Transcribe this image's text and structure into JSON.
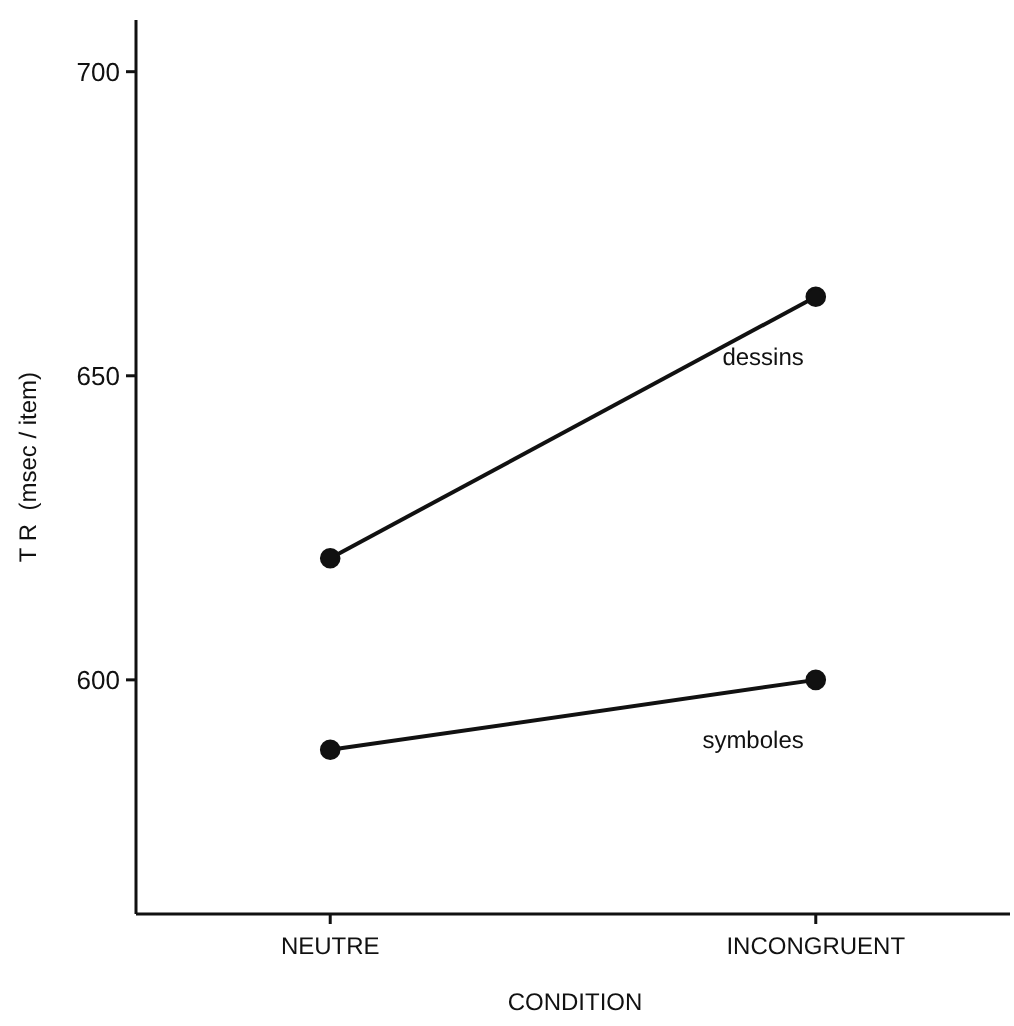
{
  "chart_data": {
    "type": "line",
    "xlabel": "CONDITION",
    "ylabel": "T R  (msec / item)",
    "categories": [
      "NEUTRE",
      "INCONGRUENT"
    ],
    "ylim": [
      561.5,
      708.5
    ],
    "yticks": [
      600,
      650,
      700
    ],
    "marker": "circle",
    "grid": false,
    "series": [
      {
        "name": "dessins",
        "color": "#111111",
        "values": [
          620,
          663
        ]
      },
      {
        "name": "symboles",
        "color": "#111111",
        "values": [
          588.5,
          600
        ]
      }
    ]
  }
}
